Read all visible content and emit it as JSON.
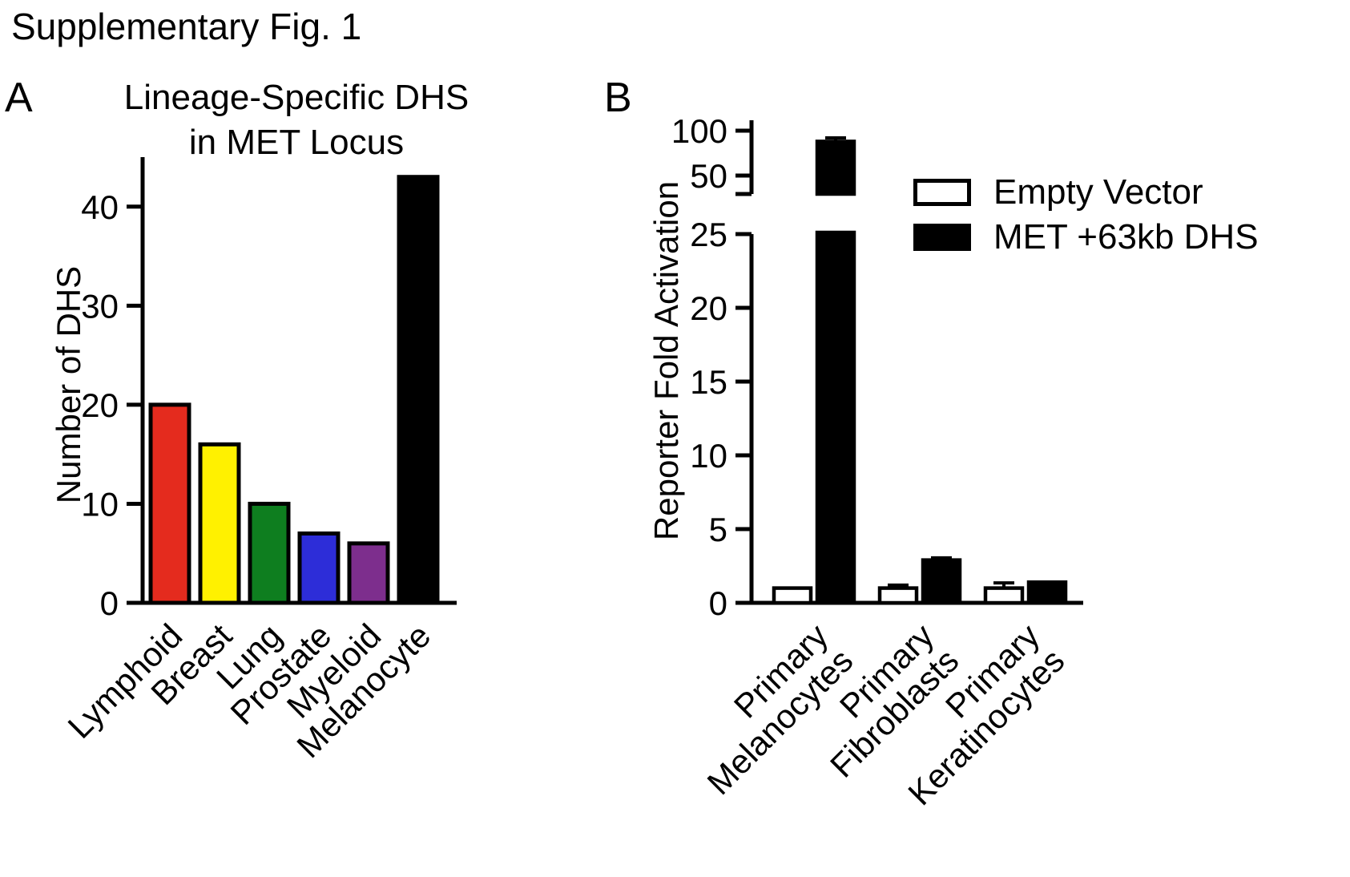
{
  "figure_title": "Supplementary Fig. 1",
  "panels": {
    "a_label": "A",
    "b_label": "B"
  },
  "colors": {
    "axis": "#000000",
    "background": "#FFFFFF"
  },
  "chart_data": [
    {
      "type": "bar",
      "panel": "A",
      "title": "Lineage-Specific DHS in MET Locus",
      "title_lines": [
        "Lineage-Specific DHS",
        "in MET Locus"
      ],
      "ylabel": "Number of DHS",
      "categories": [
        "Lymphoid",
        "Breast",
        "Lung",
        "Prostate",
        "Myeloid",
        "Melanocyte"
      ],
      "values": [
        20,
        16,
        10,
        7,
        6,
        43
      ],
      "bar_colors": [
        "#E42B1E",
        "#FFF100",
        "#0E7E1F",
        "#2D2DD8",
        "#7D2E8D",
        "#000000"
      ],
      "yticks": [
        0,
        10,
        20,
        30,
        40
      ],
      "ylim": [
        0,
        45
      ],
      "grid": false,
      "legend_position": "none"
    },
    {
      "type": "grouped-bar",
      "panel": "B",
      "title": "",
      "ylabel": "Reporter Fold Activation",
      "categories": [
        "Primary Melanocytes",
        "Primary Fibroblasts",
        "Primary Keratinocytes"
      ],
      "series": [
        {
          "name": "Empty Vector",
          "fill": "#FFFFFF",
          "values": [
            1,
            1,
            1
          ],
          "errors": [
            0,
            0.2,
            0.35
          ]
        },
        {
          "name": "MET +63kb DHS",
          "fill": "#000000",
          "values": [
            88,
            2.9,
            1.4
          ],
          "errors": [
            4,
            0.15,
            0.12
          ]
        }
      ],
      "broken_axis": {
        "lower_range": [
          0,
          25
        ],
        "lower_ticks": [
          0,
          5,
          10,
          15,
          20,
          25
        ],
        "upper_range": [
          30,
          100
        ],
        "upper_ticks": [
          50,
          100
        ]
      },
      "grid": false,
      "legend_position": "top-right"
    }
  ]
}
